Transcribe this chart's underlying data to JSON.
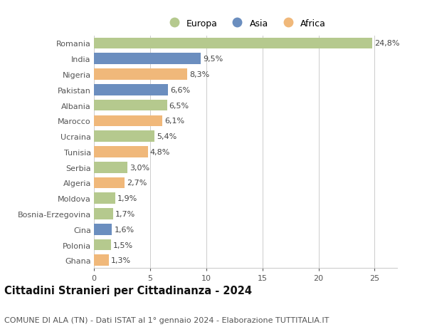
{
  "countries": [
    "Romania",
    "India",
    "Nigeria",
    "Pakistan",
    "Albania",
    "Marocco",
    "Ucraina",
    "Tunisia",
    "Serbia",
    "Algeria",
    "Moldova",
    "Bosnia-Erzegovina",
    "Cina",
    "Polonia",
    "Ghana"
  ],
  "values": [
    24.8,
    9.5,
    8.3,
    6.6,
    6.5,
    6.1,
    5.4,
    4.8,
    3.0,
    2.7,
    1.9,
    1.7,
    1.6,
    1.5,
    1.3
  ],
  "labels": [
    "24,8%",
    "9,5%",
    "8,3%",
    "6,6%",
    "6,5%",
    "6,1%",
    "5,4%",
    "4,8%",
    "3,0%",
    "2,7%",
    "1,9%",
    "1,7%",
    "1,6%",
    "1,5%",
    "1,3%"
  ],
  "continents": [
    "Europa",
    "Asia",
    "Africa",
    "Asia",
    "Europa",
    "Africa",
    "Europa",
    "Africa",
    "Europa",
    "Africa",
    "Europa",
    "Europa",
    "Asia",
    "Europa",
    "Africa"
  ],
  "colors": {
    "Europa": "#b5c98e",
    "Asia": "#6b8ebf",
    "Africa": "#f0b87a"
  },
  "xlim": [
    0,
    27
  ],
  "xticks": [
    0,
    5,
    10,
    15,
    20,
    25
  ],
  "title": "Cittadini Stranieri per Cittadinanza - 2024",
  "subtitle": "COMUNE DI ALA (TN) - Dati ISTAT al 1° gennaio 2024 - Elaborazione TUTTITALIA.IT",
  "background_color": "#ffffff",
  "grid_color": "#cccccc",
  "bar_height": 0.72,
  "label_fontsize": 8.0,
  "tick_fontsize": 8.0,
  "title_fontsize": 10.5,
  "subtitle_fontsize": 8.0
}
